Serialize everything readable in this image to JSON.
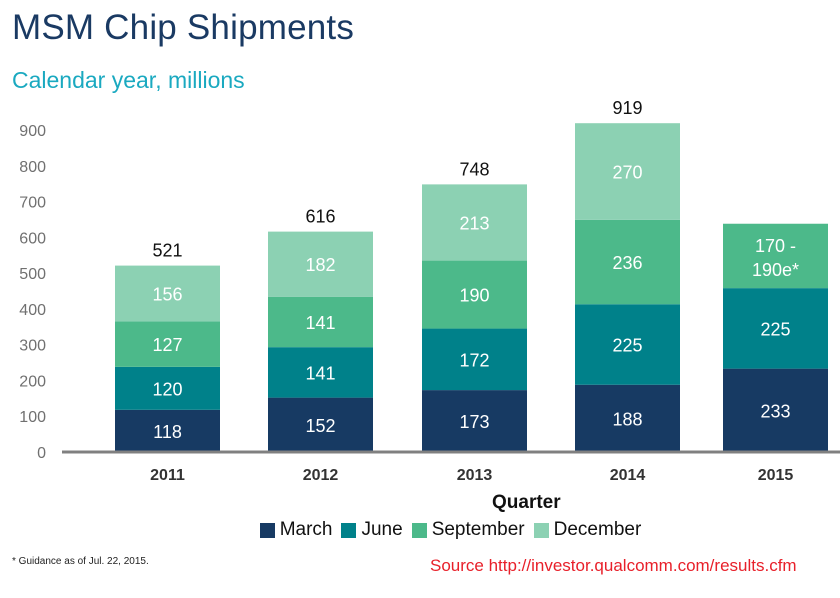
{
  "header": {
    "title": "MSM Chip Shipments",
    "subtitle": "Calendar year, millions"
  },
  "chart_data": {
    "type": "bar",
    "stacked": true,
    "title": "MSM Chip Shipments",
    "subtitle": "Calendar year, millions",
    "xlabel": "Quarter",
    "ylabel": "",
    "ylim": [
      0,
      900
    ],
    "yticks": [
      0,
      100,
      200,
      300,
      400,
      500,
      600,
      700,
      800,
      900
    ],
    "grid": false,
    "legend_position": "bottom",
    "categories": [
      "2011",
      "2012",
      "2013",
      "2014",
      "2015"
    ],
    "series": [
      {
        "name": "March",
        "color": "#173a63",
        "values": [
          118,
          152,
          173,
          188,
          233
        ],
        "labels": [
          "118",
          "152",
          "173",
          "188",
          "233"
        ]
      },
      {
        "name": "June",
        "color": "#00818a",
        "values": [
          120,
          141,
          172,
          225,
          225
        ],
        "labels": [
          "120",
          "141",
          "172",
          "225",
          "225"
        ]
      },
      {
        "name": "September",
        "color": "#4cb98a",
        "values": [
          127,
          141,
          190,
          236,
          180
        ],
        "labels": [
          "127",
          "141",
          "190",
          "236",
          "170 - 190e*"
        ]
      },
      {
        "name": "December",
        "color": "#8cd1b3",
        "values": [
          156,
          182,
          213,
          270,
          null
        ],
        "labels": [
          "156",
          "182",
          "213",
          "270",
          ""
        ]
      }
    ],
    "totals": [
      "521",
      "616",
      "748",
      "919",
      ""
    ]
  },
  "footnote": "* Guidance as of Jul. 22, 2015.",
  "source": "Source http://investor.qualcomm.com/results.cfm"
}
